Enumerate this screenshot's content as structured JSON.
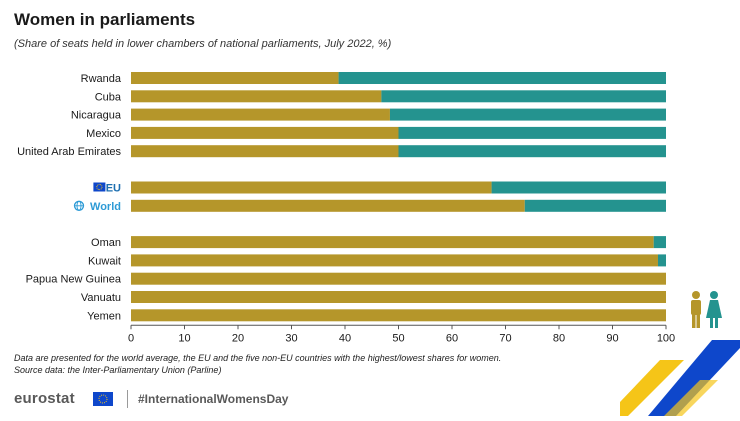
{
  "title": "Women in parliaments",
  "subtitle": "(Share of seats held in lower chambers of national parliaments, July 2022, %)",
  "notes": {
    "line1": "Data are presented for the world average, the EU and the five non-EU countries with the highest/lowest shares for women.",
    "line2": "Source data: the Inter-Parliamentary Union (Parline)"
  },
  "footer": {
    "logo": "eurostat",
    "hashtag": "#InternationalWomensDay"
  },
  "icons": {
    "eu_flag": "eu-flag-icon",
    "world": "globe-icon",
    "people": "man-woman-icon"
  },
  "colors": {
    "men": "#B5962A",
    "women": "#24938F",
    "highlight_label": "#1E6FB0",
    "world_label": "#2E9BD6"
  },
  "chart_data": {
    "type": "bar",
    "orientation": "horizontal",
    "stacked": true,
    "categories": [
      "Rwanda",
      "Cuba",
      "Nicaragua",
      "Mexico",
      "United Arab Emirates",
      "EU",
      "World",
      "Oman",
      "Kuwait",
      "Papua New Guinea",
      "Vanuatu",
      "Yemen"
    ],
    "highlighted": [
      "EU",
      "World"
    ],
    "groups": [
      [
        "Rwanda",
        "Cuba",
        "Nicaragua",
        "Mexico",
        "United Arab Emirates"
      ],
      [
        "EU",
        "World"
      ],
      [
        "Oman",
        "Kuwait",
        "Papua New Guinea",
        "Vanuatu",
        "Yemen"
      ]
    ],
    "series": [
      {
        "values": [
          38.8,
          46.8,
          48.4,
          50.0,
          50.0,
          67.4,
          73.6,
          97.7,
          98.5,
          100,
          100,
          100
        ]
      },
      {
        "values": [
          61.2,
          53.2,
          51.6,
          50.0,
          50.0,
          32.6,
          26.4,
          2.3,
          1.5,
          0,
          0,
          0
        ]
      }
    ],
    "xlim": [
      0,
      100
    ],
    "xticks": [
      0,
      10,
      20,
      30,
      40,
      50,
      60,
      70,
      80,
      90,
      100
    ],
    "grid": false,
    "legend": "none"
  }
}
